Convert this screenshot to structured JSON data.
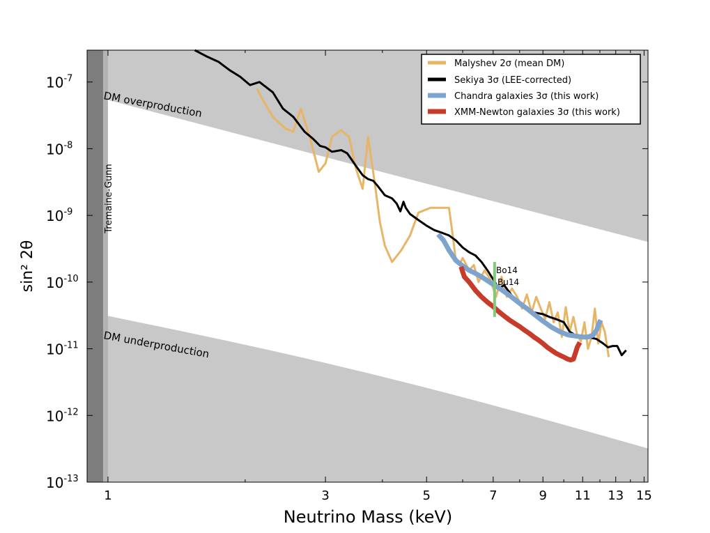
{
  "chart_data": {
    "type": "line",
    "xlabel": "Neutrino Mass (keV)",
    "ylabel": "sin² 2θ",
    "xscale": "log",
    "yscale": "log",
    "xlim": [
      0.9,
      15.3
    ],
    "ylim": [
      1e-13,
      3e-07
    ],
    "x_ticks": [
      {
        "value": 1,
        "label": "1"
      },
      {
        "value": 3,
        "label": "3"
      },
      {
        "value": 5,
        "label": "5"
      },
      {
        "value": 7,
        "label": "7"
      },
      {
        "value": 9,
        "label": "9"
      },
      {
        "value": 11,
        "label": "11"
      },
      {
        "value": 13,
        "label": "13"
      },
      {
        "value": 15,
        "label": "15"
      }
    ],
    "y_ticks": [
      {
        "value": 1e-13,
        "base": "10",
        "exp": "-13"
      },
      {
        "value": 1e-12,
        "base": "10",
        "exp": "-12"
      },
      {
        "value": 1e-11,
        "base": "10",
        "exp": "-11"
      },
      {
        "value": 1e-10,
        "base": "10",
        "exp": "-10"
      },
      {
        "value": 1e-09,
        "base": "10",
        "exp": "-9"
      },
      {
        "value": 1e-08,
        "base": "10",
        "exp": "-8"
      },
      {
        "value": 1e-07,
        "base": "10",
        "exp": "-7"
      }
    ],
    "regions": [
      {
        "name": "DM overproduction",
        "label": "DM overproduction",
        "color": "#c8c8c8",
        "boundary": [
          [
            0.9,
            6.5e-08
          ],
          [
            15.3,
            4e-10
          ]
        ]
      },
      {
        "name": "DM underproduction",
        "label": "DM underproduction",
        "color": "#c8c8c8",
        "boundary": [
          [
            0.9,
            3.6e-11
          ],
          [
            15.3,
            3.2e-13
          ]
        ]
      },
      {
        "name": "Tremaine-Gunn",
        "label": "Tremaine-Gunn",
        "x_max": 1.0,
        "color_dark": "#7d7d7d",
        "color_light": "#b3b3b3"
      }
    ],
    "series": [
      {
        "name": "Malyshev 2σ (mean DM)",
        "color": "#e8b465",
        "points": [
          [
            2.12,
            8e-08
          ],
          [
            2.2,
            5e-08
          ],
          [
            2.3,
            3e-08
          ],
          [
            2.45,
            2e-08
          ],
          [
            2.55,
            1.8e-08
          ],
          [
            2.65,
            4e-08
          ],
          [
            2.78,
            1.4e-08
          ],
          [
            2.9,
            4.5e-09
          ],
          [
            3.0,
            6e-09
          ],
          [
            3.1,
            1.5e-08
          ],
          [
            3.25,
            1.9e-08
          ],
          [
            3.38,
            1.5e-08
          ],
          [
            3.5,
            5e-09
          ],
          [
            3.62,
            2.5e-09
          ],
          [
            3.72,
            1.5e-08
          ],
          [
            3.85,
            3e-09
          ],
          [
            3.95,
            8e-10
          ],
          [
            4.05,
            3.5e-10
          ],
          [
            4.2,
            2e-10
          ],
          [
            4.4,
            3e-10
          ],
          [
            4.6,
            5e-10
          ],
          [
            4.8,
            1.1e-09
          ],
          [
            5.1,
            1.3e-09
          ],
          [
            5.6,
            1.3e-09
          ],
          [
            5.72,
            4.5e-10
          ],
          [
            5.8,
            2e-10
          ],
          [
            5.9,
            1.8e-10
          ],
          [
            6.0,
            2.3e-10
          ],
          [
            6.2,
            1.5e-10
          ],
          [
            6.35,
            1.8e-10
          ],
          [
            6.5,
            1e-10
          ],
          [
            6.7,
            1.5e-10
          ],
          [
            6.9,
            1.1e-10
          ],
          [
            7.1,
            6e-11
          ],
          [
            7.3,
            1.2e-10
          ],
          [
            7.5,
            6e-11
          ],
          [
            7.7,
            8e-11
          ],
          [
            7.9,
            6e-11
          ],
          [
            8.1,
            4e-11
          ],
          [
            8.3,
            6.5e-11
          ],
          [
            8.5,
            3.5e-11
          ],
          [
            8.7,
            6e-11
          ],
          [
            8.9,
            4e-11
          ],
          [
            9.1,
            2.8e-11
          ],
          [
            9.3,
            5e-11
          ],
          [
            9.5,
            2.5e-11
          ],
          [
            9.7,
            3.5e-11
          ],
          [
            9.9,
            1.5e-11
          ],
          [
            10.1,
            4.2e-11
          ],
          [
            10.3,
            1.8e-11
          ],
          [
            10.5,
            3e-11
          ],
          [
            10.7,
            1.6e-11
          ],
          [
            10.9,
            1.3e-11
          ],
          [
            11.1,
            2.5e-11
          ],
          [
            11.3,
            1e-11
          ],
          [
            11.5,
            1.5e-11
          ],
          [
            11.7,
            4e-11
          ],
          [
            11.9,
            1.2e-11
          ],
          [
            12.1,
            2.5e-11
          ],
          [
            12.3,
            1.8e-11
          ],
          [
            12.55,
            7.5e-12
          ]
        ]
      },
      {
        "name": "Sekiya 3σ (LEE-corrected)",
        "color": "#000000",
        "points": [
          [
            1.55,
            3e-07
          ],
          [
            1.65,
            2.4e-07
          ],
          [
            1.75,
            2e-07
          ],
          [
            1.85,
            1.5e-07
          ],
          [
            1.95,
            1.2e-07
          ],
          [
            2.05,
            9e-08
          ],
          [
            2.15,
            1e-07
          ],
          [
            2.3,
            7e-08
          ],
          [
            2.42,
            4e-08
          ],
          [
            2.55,
            3e-08
          ],
          [
            2.7,
            1.8e-08
          ],
          [
            2.82,
            1.4e-08
          ],
          [
            2.92,
            1.1e-08
          ],
          [
            3.0,
            1.05e-08
          ],
          [
            3.1,
            9e-09
          ],
          [
            3.25,
            9.5e-09
          ],
          [
            3.35,
            8.5e-09
          ],
          [
            3.5,
            5.5e-09
          ],
          [
            3.62,
            4e-09
          ],
          [
            3.72,
            3.5e-09
          ],
          [
            3.82,
            3.3e-09
          ],
          [
            3.9,
            2.8e-09
          ],
          [
            4.05,
            2e-09
          ],
          [
            4.2,
            1.8e-09
          ],
          [
            4.3,
            1.5e-09
          ],
          [
            4.38,
            1.15e-09
          ],
          [
            4.45,
            1.6e-09
          ],
          [
            4.5,
            1.3e-09
          ],
          [
            4.6,
            1.05e-09
          ],
          [
            4.8,
            8.5e-10
          ],
          [
            5.0,
            7e-10
          ],
          [
            5.2,
            6e-10
          ],
          [
            5.4,
            5.5e-10
          ],
          [
            5.6,
            5e-10
          ],
          [
            5.8,
            4.2e-10
          ],
          [
            6.0,
            3.3e-10
          ],
          [
            6.2,
            2.8e-10
          ],
          [
            6.4,
            2.5e-10
          ],
          [
            6.6,
            2e-10
          ],
          [
            6.8,
            1.5e-10
          ],
          [
            7.0,
            1.1e-10
          ],
          [
            7.2,
            8e-11
          ],
          [
            7.4,
            9e-11
          ],
          [
            7.6,
            7e-11
          ],
          [
            7.8,
            5.5e-11
          ],
          [
            8.0,
            5e-11
          ],
          [
            8.3,
            4e-11
          ],
          [
            8.6,
            3.5e-11
          ],
          [
            9.0,
            3.3e-11
          ],
          [
            9.3,
            3e-11
          ],
          [
            9.6,
            2.8e-11
          ],
          [
            10.0,
            2.5e-11
          ],
          [
            10.3,
            1.8e-11
          ],
          [
            10.6,
            1.6e-11
          ],
          [
            11.0,
            1.5e-11
          ],
          [
            11.3,
            1.5e-11
          ],
          [
            11.8,
            1.4e-11
          ],
          [
            12.2,
            1.2e-11
          ],
          [
            12.5,
            1.05e-11
          ],
          [
            12.8,
            1.1e-11
          ],
          [
            13.1,
            1.1e-11
          ],
          [
            13.4,
            8e-12
          ],
          [
            13.7,
            9.5e-12
          ]
        ]
      },
      {
        "name": "Chandra galaxies 3σ (this work)",
        "color": "#7ea3cd",
        "points": [
          [
            5.3,
            5.2e-10
          ],
          [
            5.45,
            4.2e-10
          ],
          [
            5.6,
            3e-10
          ],
          [
            5.8,
            2.1e-10
          ],
          [
            6.0,
            1.75e-10
          ],
          [
            6.2,
            1.5e-10
          ],
          [
            6.4,
            1.35e-10
          ],
          [
            6.6,
            1.2e-10
          ],
          [
            6.8,
            1.05e-10
          ],
          [
            7.0,
            9.2e-11
          ],
          [
            7.2,
            8.2e-11
          ],
          [
            7.4,
            7.2e-11
          ],
          [
            7.6,
            6.3e-11
          ],
          [
            7.8,
            5.5e-11
          ],
          [
            8.0,
            4.8e-11
          ],
          [
            8.3,
            4e-11
          ],
          [
            8.6,
            3.3e-11
          ],
          [
            9.0,
            2.6e-11
          ],
          [
            9.4,
            2.1e-11
          ],
          [
            9.8,
            1.8e-11
          ],
          [
            10.2,
            1.62e-11
          ],
          [
            10.6,
            1.55e-11
          ],
          [
            11.0,
            1.5e-11
          ],
          [
            11.3,
            1.5e-11
          ],
          [
            11.6,
            1.6e-11
          ],
          [
            11.8,
            1.9e-11
          ],
          [
            11.95,
            2.4e-11
          ],
          [
            12.05,
            2.7e-11
          ]
        ]
      },
      {
        "name": "XMM-Newton galaxies 3σ (this work)",
        "color": "#c63b2a",
        "points": [
          [
            5.95,
            1.7e-10
          ],
          [
            6.05,
            1.2e-10
          ],
          [
            6.2,
            1e-10
          ],
          [
            6.4,
            7.5e-11
          ],
          [
            6.6,
            6e-11
          ],
          [
            6.8,
            5e-11
          ],
          [
            7.0,
            4.3e-11
          ],
          [
            7.2,
            3.6e-11
          ],
          [
            7.4,
            3.1e-11
          ],
          [
            7.6,
            2.7e-11
          ],
          [
            7.8,
            2.4e-11
          ],
          [
            8.0,
            2.15e-11
          ],
          [
            8.2,
            1.9e-11
          ],
          [
            8.4,
            1.7e-11
          ],
          [
            8.6,
            1.5e-11
          ],
          [
            8.8,
            1.35e-11
          ],
          [
            9.0,
            1.2e-11
          ],
          [
            9.2,
            1.05e-11
          ],
          [
            9.4,
            9.5e-12
          ],
          [
            9.6,
            8.6e-12
          ],
          [
            9.8,
            8e-12
          ],
          [
            10.0,
            7.5e-12
          ],
          [
            10.2,
            7e-12
          ],
          [
            10.35,
            6.8e-12
          ],
          [
            10.5,
            7e-12
          ],
          [
            10.6,
            8.5e-12
          ],
          [
            10.7,
            1.05e-11
          ],
          [
            10.85,
            1.25e-11
          ]
        ]
      }
    ],
    "markers": [
      {
        "name": "Bo14 / Bu14",
        "x": 7.05,
        "y_range": [
          3e-11,
          2e-10
        ],
        "color": "#83c77a",
        "labels": [
          "Bo14",
          "Bu14"
        ]
      }
    ],
    "legend": {
      "position": "top-right"
    },
    "grid": false
  }
}
